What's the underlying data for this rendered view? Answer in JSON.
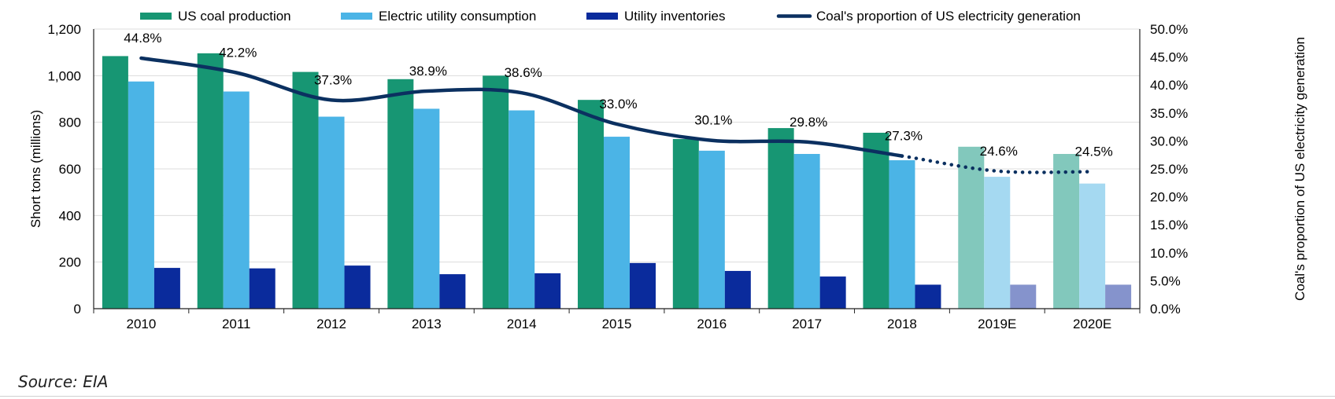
{
  "chart_data": {
    "type": "bar",
    "categories": [
      "2010",
      "2011",
      "2012",
      "2013",
      "2014",
      "2015",
      "2016",
      "2017",
      "2018",
      "2019E",
      "2020E"
    ],
    "estimated_from_index": 9,
    "series": [
      {
        "name": "US coal production",
        "type": "bar",
        "axis": "left",
        "color": "#179673",
        "color_estimate": "#82c8bc",
        "values": [
          1084,
          1096,
          1016,
          985,
          1000,
          896,
          728,
          775,
          755,
          695,
          664
        ]
      },
      {
        "name": "Electric utility consumption",
        "type": "bar",
        "axis": "left",
        "color": "#4bb4e6",
        "color_estimate": "#a5d9f1",
        "values": [
          975,
          932,
          824,
          858,
          851,
          738,
          678,
          664,
          637,
          566,
          537
        ]
      },
      {
        "name": "Utility inventories",
        "type": "bar",
        "axis": "left",
        "color": "#0a2b9c",
        "color_estimate": "#8593cc",
        "values": [
          175,
          173,
          185,
          148,
          152,
          196,
          162,
          138,
          103,
          103,
          103
        ]
      },
      {
        "name": "Coal's proportion of US electricity generation",
        "type": "line",
        "axis": "right",
        "color": "#0b3060",
        "values": [
          44.8,
          42.2,
          37.3,
          38.9,
          38.6,
          33.0,
          30.1,
          29.8,
          27.3,
          24.6,
          24.5
        ],
        "labels": [
          "44.8%",
          "42.2%",
          "37.3%",
          "38.9%",
          "38.6%",
          "33.0%",
          "30.1%",
          "29.8%",
          "27.3%",
          "24.6%",
          "24.5%"
        ]
      }
    ],
    "y_left": {
      "label": "Short tons (millions)",
      "min": 0,
      "max": 1200,
      "ticks": [
        "0",
        "200",
        "400",
        "600",
        "800",
        "1,000",
        "1,200"
      ]
    },
    "y_right": {
      "label": "Coal's proportion of US electricity generation",
      "min": 0,
      "max": 50,
      "ticks": [
        "0.0%",
        "5.0%",
        "10.0%",
        "15.0%",
        "20.0%",
        "25.0%",
        "30.0%",
        "35.0%",
        "40.0%",
        "45.0%",
        "50.0%"
      ]
    },
    "grid": true,
    "legend_position": "top"
  },
  "source": "Source: EIA"
}
